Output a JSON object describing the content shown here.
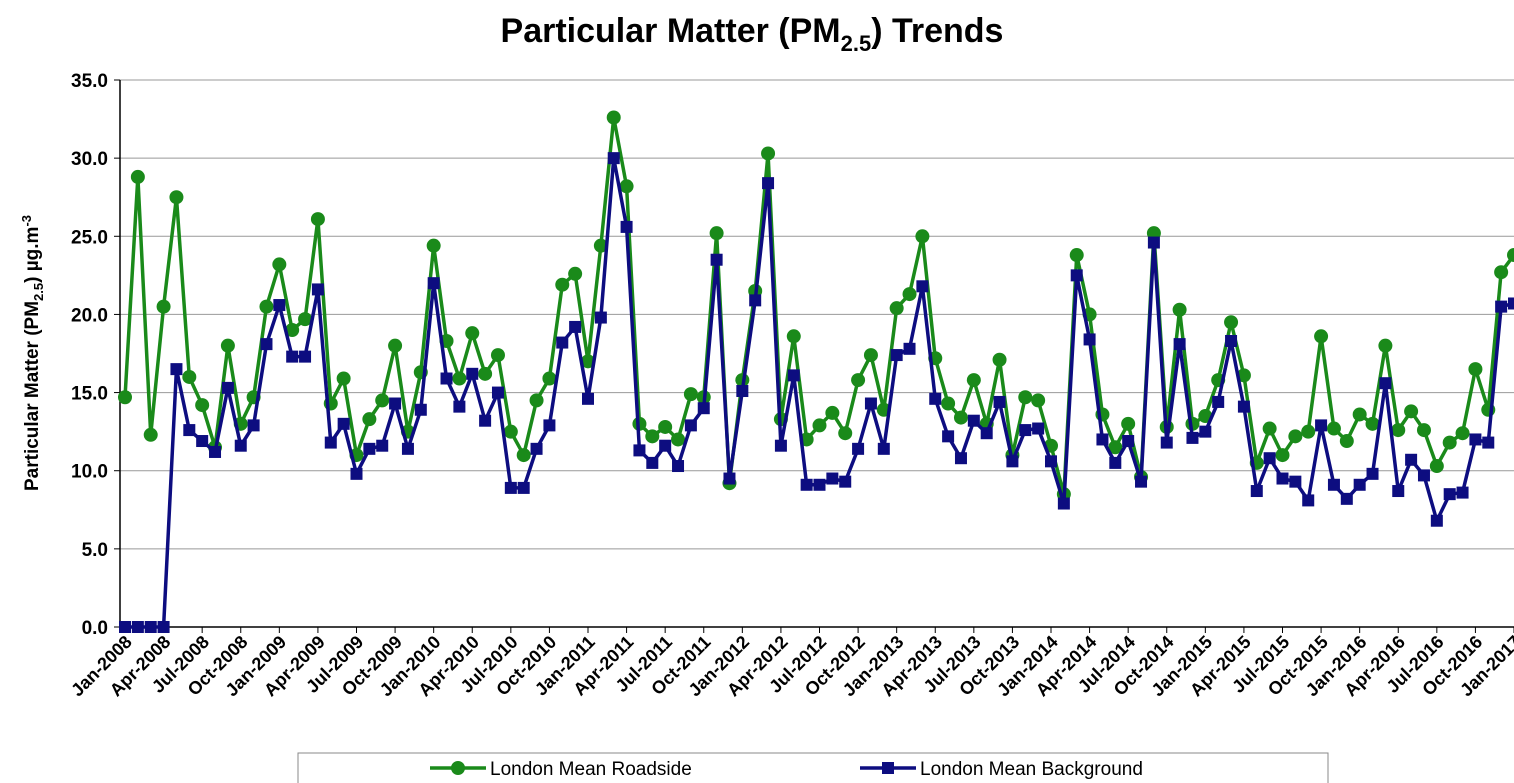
{
  "chart_data": {
    "type": "line",
    "title": [
      "Particular Matter (PM",
      "2.5",
      ") Trends"
    ],
    "y_label": [
      "Particular Matter (PM",
      "2.5",
      ") µg.m",
      "-3"
    ],
    "categories": [
      "Jan-2008",
      null,
      null,
      "Apr-2008",
      null,
      null,
      "Jul-2008",
      null,
      null,
      "Oct-2008",
      null,
      null,
      "Jan-2009",
      null,
      null,
      "Apr-2009",
      null,
      null,
      "Jul-2009",
      null,
      null,
      "Oct-2009",
      null,
      null,
      "Jan-2010",
      null,
      null,
      "Apr-2010",
      null,
      null,
      "Jul-2010",
      null,
      null,
      "Oct-2010",
      null,
      null,
      "Jan-2011",
      null,
      null,
      "Apr-2011",
      null,
      null,
      "Jul-2011",
      null,
      null,
      "Oct-2011",
      null,
      null,
      "Jan-2012",
      null,
      null,
      "Apr-2012",
      null,
      null,
      "Jul-2012",
      null,
      null,
      "Oct-2012",
      null,
      null,
      "Jan-2013",
      null,
      null,
      "Apr-2013",
      null,
      null,
      "Jul-2013",
      null,
      null,
      "Oct-2013",
      null,
      null,
      "Jan-2014",
      null,
      null,
      "Apr-2014",
      null,
      null,
      "Jul-2014",
      null,
      null,
      "Oct-2014",
      null,
      null,
      "Jan-2015",
      null,
      null,
      "Apr-2015",
      null,
      null,
      "Jul-2015",
      null,
      null,
      "Oct-2015",
      null,
      null,
      "Jan-2016",
      null,
      null,
      "Apr-2016",
      null,
      null,
      "Jul-2016",
      null,
      null,
      "Oct-2016",
      null,
      null,
      "Jan-2017"
    ],
    "series": [
      {
        "name": "London Mean Roadside",
        "color": "#1a8a1a",
        "marker": "circle",
        "values": [
          14.7,
          28.8,
          12.3,
          20.5,
          27.5,
          16.0,
          14.2,
          11.5,
          18.0,
          13.0,
          14.7,
          20.5,
          23.2,
          19.0,
          19.7,
          26.1,
          14.3,
          15.9,
          11.0,
          13.3,
          14.5,
          18.0,
          12.5,
          16.3,
          24.4,
          18.3,
          15.9,
          18.8,
          16.2,
          17.4,
          12.5,
          11.0,
          14.5,
          15.9,
          21.9,
          22.6,
          17.0,
          24.4,
          32.6,
          28.2,
          13.0,
          12.2,
          12.8,
          12.0,
          14.9,
          14.7,
          25.2,
          9.2,
          15.8,
          21.5,
          30.3,
          13.3,
          18.6,
          12.0,
          12.9,
          13.7,
          12.4,
          15.8,
          17.4,
          13.9,
          20.4,
          21.3,
          25.0,
          17.2,
          14.3,
          13.4,
          15.8,
          13.0,
          17.1,
          11.0,
          14.7,
          14.5,
          11.6,
          8.5,
          23.8,
          20.0,
          13.6,
          11.5,
          13.0,
          9.6,
          25.2,
          12.8,
          20.3,
          13.0,
          13.5,
          15.8,
          19.5,
          16.1,
          10.5,
          12.7,
          11.0,
          12.2,
          12.5,
          18.6,
          12.7,
          11.9,
          13.6,
          13.0,
          18.0,
          12.6,
          13.8,
          12.6,
          10.3,
          11.8,
          12.4,
          16.5,
          13.9,
          22.7,
          23.8
        ]
      },
      {
        "name": "London Mean Background",
        "color": "#0d0d80",
        "marker": "square",
        "values": [
          0,
          0,
          0,
          0,
          16.5,
          12.6,
          11.9,
          11.2,
          15.3,
          11.6,
          12.9,
          18.1,
          20.6,
          17.3,
          17.3,
          21.6,
          11.8,
          13.0,
          9.8,
          11.4,
          11.6,
          14.3,
          11.4,
          13.9,
          22.0,
          15.9,
          14.1,
          16.2,
          13.2,
          15.0,
          8.9,
          8.9,
          11.4,
          12.9,
          18.2,
          19.2,
          14.6,
          19.8,
          30.0,
          25.6,
          11.3,
          10.5,
          11.6,
          10.3,
          12.9,
          14.0,
          23.5,
          9.5,
          15.1,
          20.9,
          28.4,
          11.6,
          16.1,
          9.1,
          9.1,
          9.5,
          9.3,
          11.4,
          14.3,
          11.4,
          17.4,
          17.8,
          21.8,
          14.6,
          12.2,
          10.8,
          13.2,
          12.4,
          14.4,
          10.6,
          12.6,
          12.7,
          10.6,
          7.9,
          22.5,
          18.4,
          12.0,
          10.5,
          11.9,
          9.3,
          24.6,
          11.8,
          18.1,
          12.1,
          12.5,
          14.4,
          18.3,
          14.1,
          8.7,
          10.8,
          9.5,
          9.3,
          8.1,
          12.9,
          9.1,
          8.2,
          9.1,
          9.8,
          15.6,
          8.7,
          10.7,
          9.7,
          6.8,
          8.5,
          8.6,
          12.0,
          11.8,
          20.5,
          20.7
        ]
      }
    ],
    "ylim": [
      0,
      35
    ],
    "yticks": [
      {
        "value": 0,
        "label": "0.0"
      },
      {
        "value": 5,
        "label": "5.0"
      },
      {
        "value": 10,
        "label": "10.0"
      },
      {
        "value": 15,
        "label": "15.0"
      },
      {
        "value": 20,
        "label": "20.0"
      },
      {
        "value": 25,
        "label": "25.0"
      },
      {
        "value": 30,
        "label": "30.0"
      },
      {
        "value": 35,
        "label": "35.0"
      }
    ],
    "grid": true,
    "legend": "bottom"
  }
}
